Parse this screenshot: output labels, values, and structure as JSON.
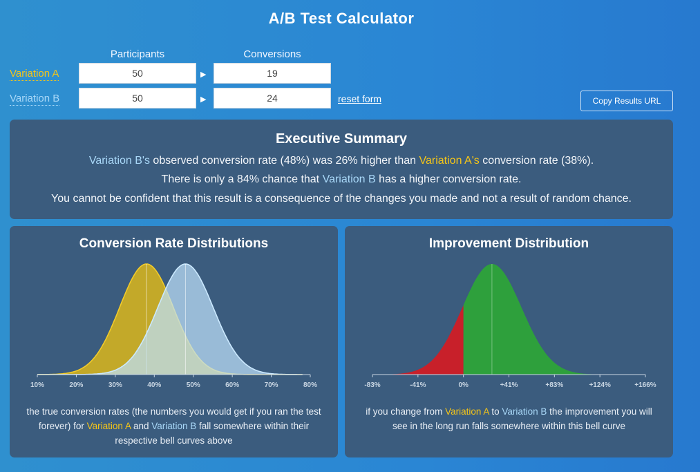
{
  "title": "A/B Test Calculator",
  "inputs": {
    "participants_header": "Participants",
    "conversions_header": "Conversions",
    "variation_a": {
      "label": "Variation A",
      "participants": "50",
      "conversions": "19"
    },
    "variation_b": {
      "label": "Variation B",
      "participants": "50",
      "conversions": "24"
    },
    "reset_label": "reset form",
    "copy_label": "Copy Results URL"
  },
  "summary": {
    "heading": "Executive Summary",
    "line1": {
      "pre": "Variation B's",
      "mid1": " observed conversion rate (48%) was 26% higher than ",
      "var_a": "Variation A's",
      "post": " conversion rate (38%)."
    },
    "line2": {
      "pre": "There is only a 84% chance that ",
      "var_b": "Variation B",
      "post": " has a higher conversion rate."
    },
    "line3": "You cannot be confident that this result is a consequence of the changes you made and not a result of random chance."
  },
  "distribution_panel": {
    "title": "Conversion Rate Distributions",
    "caption": {
      "pre": "the true conversion rates (the numbers you would get if you ran the test forever) for ",
      "var_a": "Variation A",
      "and": " and ",
      "var_b": "Variation B",
      "post": "  fall somewhere within their respective bell curves above"
    }
  },
  "improvement_panel": {
    "title": "Improvement Distribution",
    "caption": {
      "pre": "if you change from ",
      "var_a": "Variation A",
      "to": " to ",
      "var_b": "Variation B",
      "post": " the improvement you will see in the long run falls somewhere within this bell curve"
    }
  },
  "colors": {
    "variation_a": "#f5c518",
    "variation_b": "#a9d8f8",
    "improve_positive": "#2ea03c",
    "improve_negative": "#c8202a",
    "panel": "#3b5c7e"
  },
  "chart_data": [
    {
      "type": "area",
      "xlim": [
        10,
        80
      ],
      "x_ticks": [
        "10%",
        "20%",
        "30%",
        "40%",
        "50%",
        "60%",
        "70%",
        "80%"
      ],
      "series": [
        {
          "name": "Variation A",
          "mean": 38,
          "sd": 6.9
        },
        {
          "name": "Variation B",
          "mean": 48,
          "sd": 7.1
        }
      ]
    },
    {
      "type": "area",
      "xlim": [
        -83,
        166
      ],
      "x_ticks": [
        "-83%",
        "-41%",
        "0%",
        "+41%",
        "+83%",
        "+124%",
        "+166%"
      ],
      "mean": 26,
      "sd": 27,
      "split_at": 0,
      "probability_positive": 0.84
    }
  ]
}
